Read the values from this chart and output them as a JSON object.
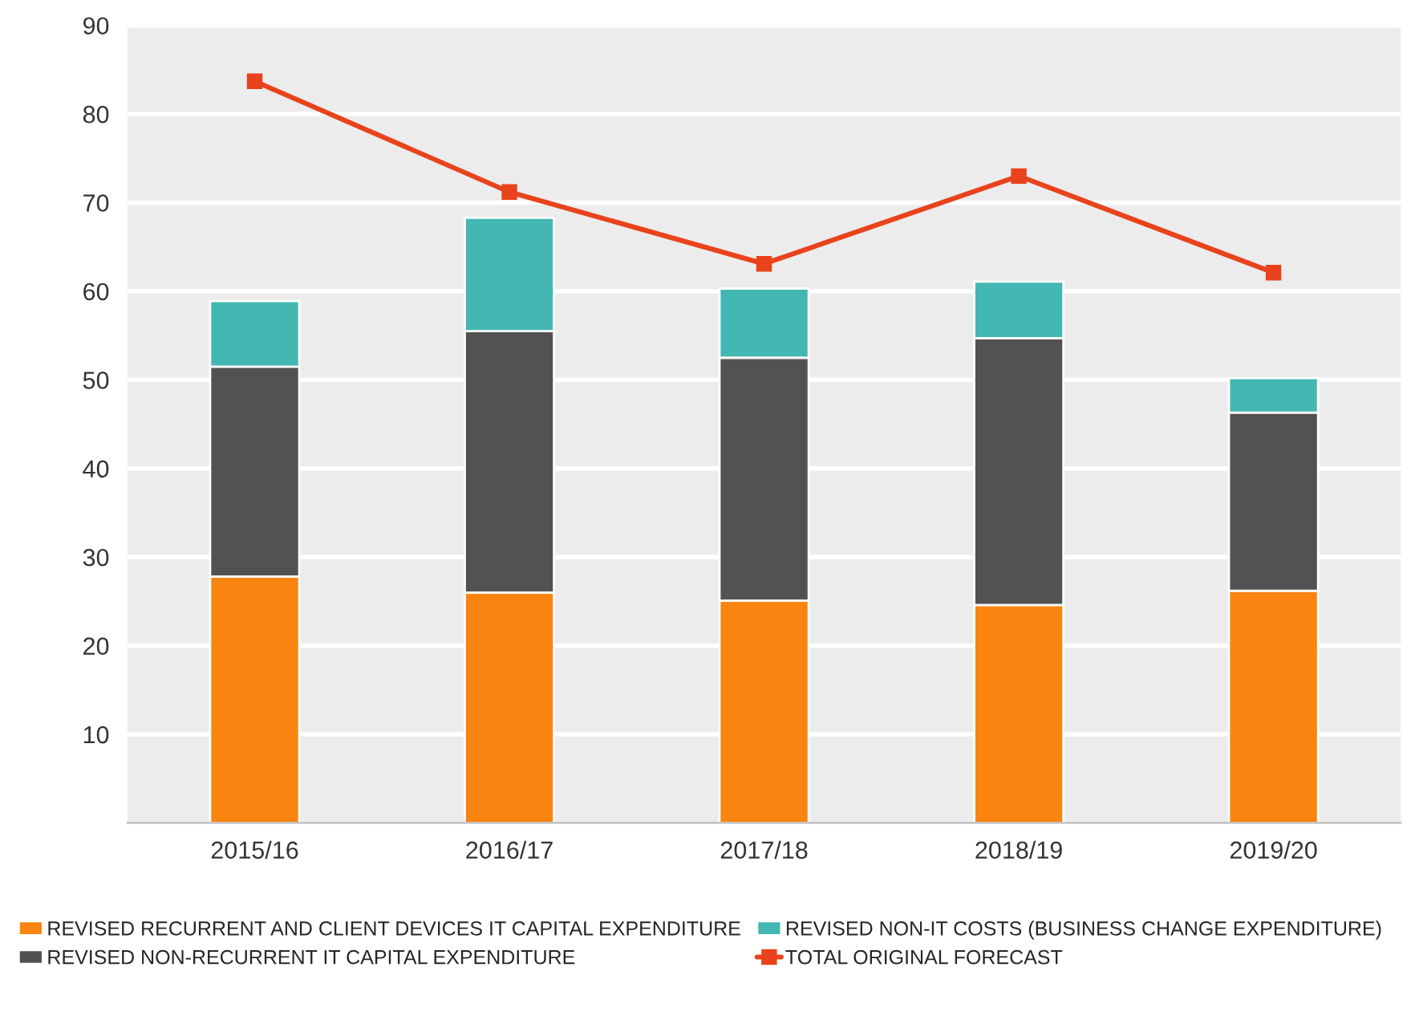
{
  "chart_data": {
    "type": "bar",
    "stacked": true,
    "categories": [
      "2015/16",
      "2016/17",
      "2017/18",
      "2018/19",
      "2019/20"
    ],
    "series": [
      {
        "name": "REVISED RECURRENT AND CLIENT DEVICES IT CAPITAL EXPENDITURE",
        "color": "#f98410",
        "values": [
          27.8,
          26.0,
          25.1,
          24.6,
          26.2
        ]
      },
      {
        "name": "REVISED NON-RECURRENT IT CAPITAL EXPENDITURE",
        "color": "#525252",
        "values": [
          23.7,
          29.5,
          27.4,
          30.1,
          20.1
        ]
      },
      {
        "name": "REVISED NON-IT COSTS (BUSINESS CHANGE EXPENDITURE)",
        "color": "#43b7b1",
        "values": [
          7.4,
          12.8,
          7.8,
          6.4,
          3.9
        ]
      },
      {
        "name": "TOTAL ORIGINAL FORECAST",
        "type": "line",
        "color": "#e8431c",
        "marker": "square",
        "values": [
          83.7,
          71.2,
          63.1,
          73.0,
          62.1
        ]
      }
    ],
    "ylim": [
      0,
      90
    ],
    "yticks": [
      10,
      20,
      30,
      40,
      50,
      60,
      70,
      80,
      90
    ],
    "grid": "y",
    "legend": "bottom"
  }
}
